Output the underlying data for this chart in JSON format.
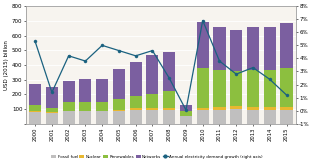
{
  "years": [
    2000,
    2001,
    2002,
    2003,
    2004,
    2005,
    2006,
    2007,
    2008,
    2009,
    2010,
    2011,
    2012,
    2013,
    2014,
    2015
  ],
  "fossil_fuel": [
    80,
    70,
    85,
    85,
    85,
    90,
    95,
    95,
    95,
    50,
    95,
    95,
    100,
    95,
    95,
    95
  ],
  "nuclear": [
    10,
    10,
    5,
    5,
    5,
    5,
    10,
    10,
    10,
    5,
    15,
    20,
    20,
    20,
    20,
    20
  ],
  "renewables": [
    35,
    30,
    55,
    60,
    60,
    75,
    85,
    100,
    120,
    30,
    270,
    250,
    240,
    250,
    250,
    265
  ],
  "networks": [
    145,
    140,
    145,
    155,
    155,
    205,
    230,
    265,
    265,
    45,
    310,
    290,
    280,
    295,
    295,
    305
  ],
  "demand_growth": [
    5.3,
    1.4,
    4.2,
    3.8,
    5.0,
    4.6,
    4.2,
    4.6,
    2.5,
    0.05,
    6.9,
    3.8,
    2.8,
    3.3,
    2.4,
    1.2
  ],
  "colors": {
    "fossil_fuel": "#c0bfbf",
    "nuclear": "#e8b830",
    "renewables": "#8cbf3f",
    "networks": "#7b5fa0"
  },
  "ylabel_left": "USD (2015) billion",
  "ylim_left": [
    0,
    800
  ],
  "ylim_right": [
    -1,
    8
  ],
  "yticks_left": [
    0,
    100,
    200,
    300,
    400,
    500,
    600,
    700,
    800
  ],
  "yticks_right_vals": [
    -1,
    0,
    1,
    2,
    3,
    4,
    5,
    6,
    7,
    8
  ],
  "yticks_right_labels": [
    "-1%",
    "0%",
    "1%",
    "2%",
    "3%",
    "4%",
    "5%",
    "6%",
    "7%",
    "8%"
  ],
  "line_color": "#1b6280",
  "bg_color": "#ffffff",
  "plot_bg": "#f7f4ef"
}
